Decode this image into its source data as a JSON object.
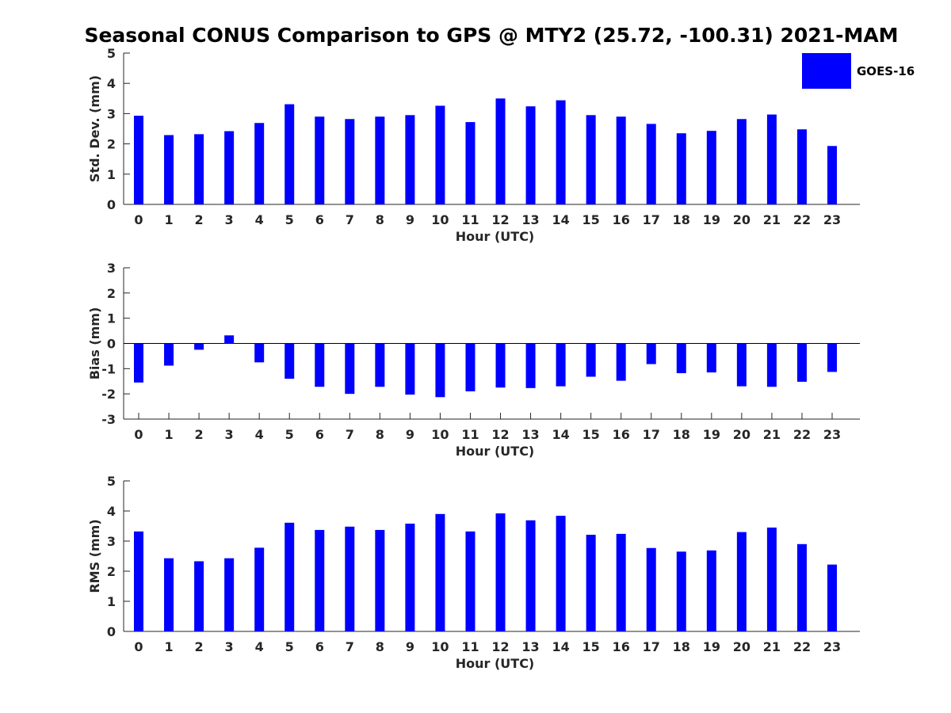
{
  "title": "Seasonal CONUS Comparison to GPS @ MTY2 (25.72, -100.31) 2021-MAM",
  "legend": {
    "label": "GOES-16",
    "color": "#0000ff"
  },
  "chart_data": [
    {
      "type": "bar",
      "xlabel": "Hour (UTC)",
      "ylabel": "Std. Dev. (mm)",
      "ylim": [
        0,
        5
      ],
      "yticks": [
        "0",
        "1",
        "2",
        "3",
        "4",
        "5"
      ],
      "categories": [
        "0",
        "1",
        "2",
        "3",
        "4",
        "5",
        "6",
        "7",
        "8",
        "9",
        "10",
        "11",
        "12",
        "13",
        "14",
        "15",
        "16",
        "17",
        "18",
        "19",
        "20",
        "21",
        "22",
        "23"
      ],
      "series": [
        {
          "name": "GOES-16",
          "color": "#0000ff",
          "values": [
            2.93,
            2.29,
            2.32,
            2.42,
            2.69,
            3.31,
            2.9,
            2.82,
            2.9,
            2.95,
            3.26,
            2.72,
            3.5,
            3.24,
            3.44,
            2.95,
            2.9,
            2.66,
            2.35,
            2.43,
            2.82,
            2.97,
            2.48,
            1.93
          ]
        }
      ]
    },
    {
      "type": "bar",
      "xlabel": "Hour (UTC)",
      "ylabel": "Bias (mm)",
      "ylim": [
        -3,
        3
      ],
      "yticks": [
        "-3",
        "-2",
        "-1",
        "0",
        "1",
        "2",
        "3"
      ],
      "categories": [
        "0",
        "1",
        "2",
        "3",
        "4",
        "5",
        "6",
        "7",
        "8",
        "9",
        "10",
        "11",
        "12",
        "13",
        "14",
        "15",
        "16",
        "17",
        "18",
        "19",
        "20",
        "21",
        "22",
        "23"
      ],
      "series": [
        {
          "name": "GOES-16",
          "color": "#0000ff",
          "values": [
            -1.55,
            -0.88,
            -0.25,
            0.32,
            -0.75,
            -1.4,
            -1.72,
            -2.0,
            -1.72,
            -2.03,
            -2.13,
            -1.9,
            -1.75,
            -1.77,
            -1.7,
            -1.32,
            -1.48,
            -0.82,
            -1.18,
            -1.15,
            -1.7,
            -1.72,
            -1.52,
            -1.13
          ]
        }
      ]
    },
    {
      "type": "bar",
      "xlabel": "Hour (UTC)",
      "ylabel": "RMS (mm)",
      "ylim": [
        0,
        5
      ],
      "yticks": [
        "0",
        "1",
        "2",
        "3",
        "4",
        "5"
      ],
      "categories": [
        "0",
        "1",
        "2",
        "3",
        "4",
        "5",
        "6",
        "7",
        "8",
        "9",
        "10",
        "11",
        "12",
        "13",
        "14",
        "15",
        "16",
        "17",
        "18",
        "19",
        "20",
        "21",
        "22",
        "23"
      ],
      "series": [
        {
          "name": "GOES-16",
          "color": "#0000ff",
          "values": [
            3.32,
            2.43,
            2.33,
            2.43,
            2.78,
            3.61,
            3.37,
            3.48,
            3.37,
            3.58,
            3.9,
            3.32,
            3.92,
            3.69,
            3.84,
            3.21,
            3.24,
            2.77,
            2.65,
            2.69,
            3.3,
            3.45,
            2.9,
            2.22
          ]
        }
      ]
    }
  ]
}
